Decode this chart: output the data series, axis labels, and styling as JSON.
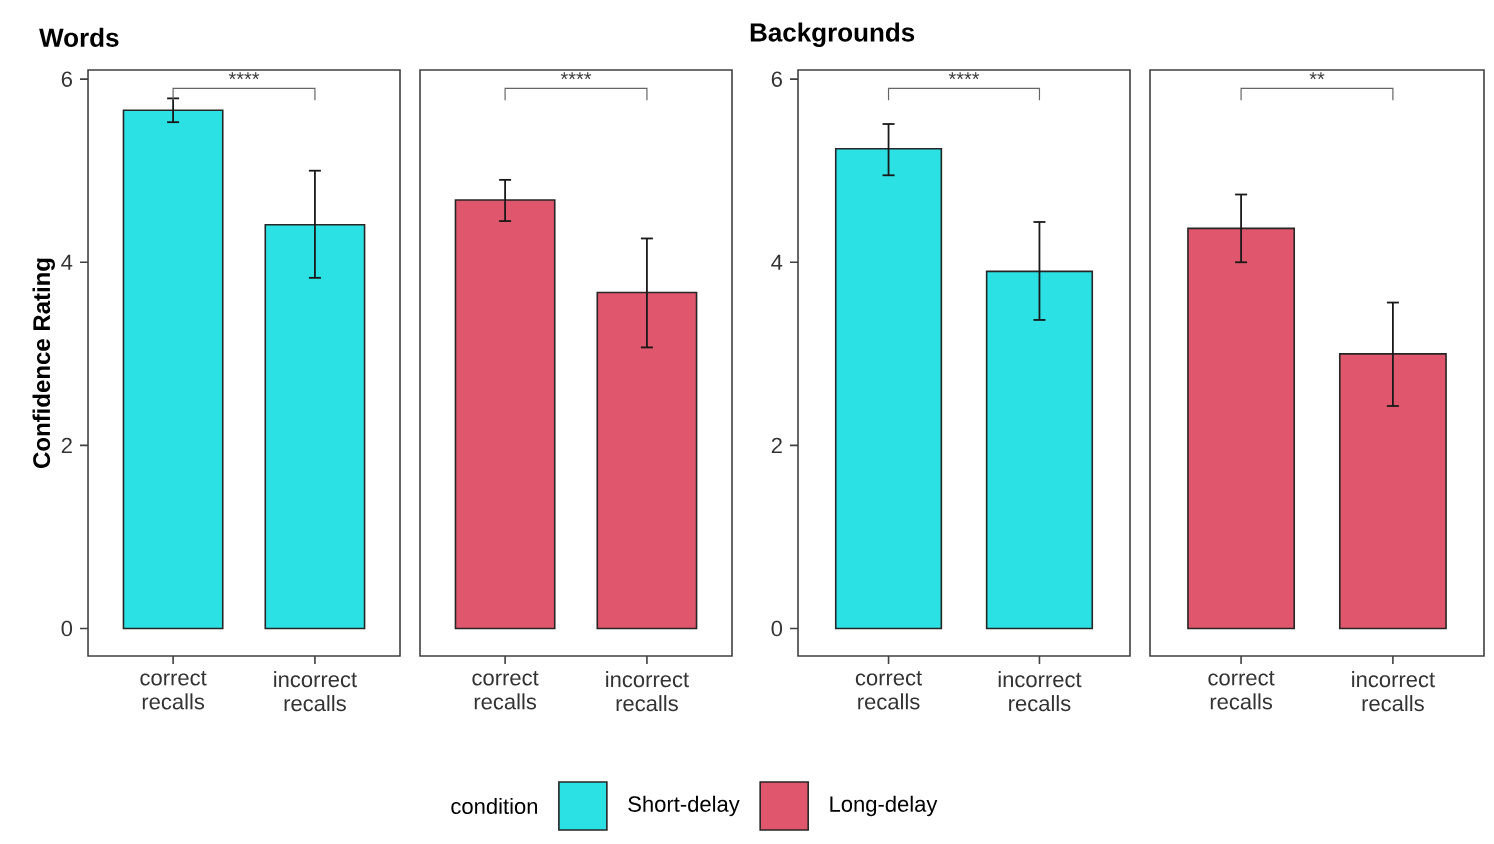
{
  "chart_data": [
    {
      "type": "bar",
      "title": "Words",
      "ylabel": "Confidence Rating",
      "categories": [
        "correct recalls",
        "incorrect recalls"
      ],
      "series": [
        {
          "name": "Short-delay",
          "color": "#2ce1e4",
          "values": [
            5.66,
            4.41
          ],
          "errors": [
            [
              5.53,
              5.79
            ],
            [
              3.83,
              5.0
            ]
          ]
        }
      ],
      "ylim": [
        -0.3,
        6.1
      ],
      "yticks": [
        0,
        2,
        4,
        6
      ],
      "annotations": [
        "****"
      ],
      "legend": "bottom",
      "legend_title": "condition"
    },
    {
      "type": "bar",
      "categories": [
        "correct recalls",
        "incorrect recalls"
      ],
      "series": [
        {
          "name": "Long-delay",
          "color": "#e0566c",
          "values": [
            4.68,
            3.67
          ],
          "errors": [
            [
              4.45,
              4.9
            ],
            [
              3.07,
              4.26
            ]
          ]
        }
      ],
      "ylim": [
        -0.3,
        6.1
      ],
      "annotations": [
        "****"
      ],
      "tick_labels": "x"
    },
    {
      "type": "bar",
      "title": "Backgrounds",
      "categories": [
        "correct recalls",
        "incorrect recalls"
      ],
      "series": [
        {
          "color": "#2ce1e4",
          "values": [
            5.24,
            3.9
          ],
          "errors": [
            [
              4.95,
              5.51
            ],
            [
              3.37,
              4.44
            ]
          ]
        }
      ],
      "ylim": [
        -0.3,
        6.1
      ],
      "yticks": [
        0,
        2,
        4,
        6
      ],
      "annotations": [
        "****"
      ]
    },
    {
      "type": "bar",
      "categories": [
        "correct recalls",
        "incorrect recalls"
      ],
      "series": [
        {
          "color": "#e0566c",
          "values": [
            4.37,
            3.0
          ],
          "errors": [
            [
              4.0,
              4.74
            ],
            [
              2.43,
              3.56
            ]
          ]
        }
      ],
      "ylim": [
        -0.3,
        6.1
      ],
      "annotations": [
        "**"
      ],
      "tick_labels": "x"
    }
  ]
}
